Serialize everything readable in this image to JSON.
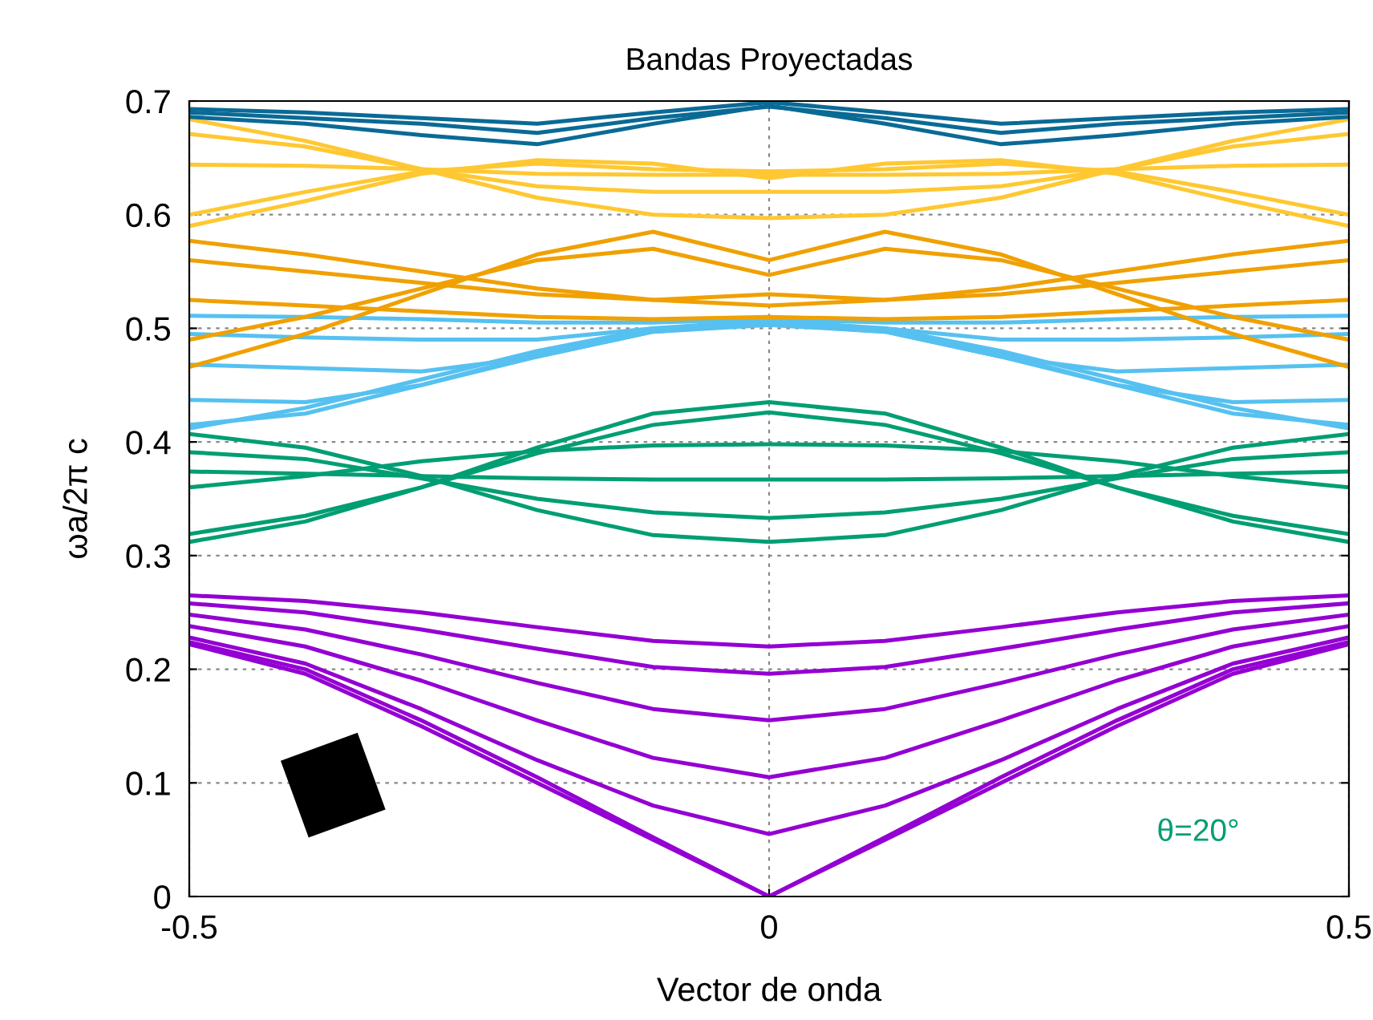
{
  "chart_data": {
    "type": "line",
    "title": "Bandas Proyectadas",
    "xlabel": "Vector de onda",
    "ylabel": "ωa/2π c",
    "annotations": [
      "θ=20°"
    ],
    "x": [
      -0.5,
      -0.4,
      -0.3,
      -0.2,
      -0.1,
      0,
      0.1,
      0.2,
      0.3,
      0.4,
      0.5
    ],
    "xlim": [
      -0.5,
      0.5
    ],
    "xticks": [
      -0.5,
      0,
      0.5
    ],
    "ylim": [
      0,
      0.7
    ],
    "yticks": [
      0,
      0.1,
      0.2,
      0.3,
      0.4,
      0.5,
      0.6,
      0.7
    ],
    "grid": true,
    "legend": false,
    "marker": "none",
    "line_style": "solid",
    "series": [
      {
        "color": "#9400d3",
        "values": [
          0.265,
          0.26,
          0.25,
          0.237,
          0.225,
          0.22,
          0.225,
          0.237,
          0.25,
          0.26,
          0.265
        ]
      },
      {
        "color": "#9400d3",
        "values": [
          0.258,
          0.25,
          0.235,
          0.218,
          0.202,
          0.196,
          0.202,
          0.218,
          0.235,
          0.25,
          0.258
        ]
      },
      {
        "color": "#9400d3",
        "values": [
          0.248,
          0.235,
          0.213,
          0.188,
          0.165,
          0.155,
          0.165,
          0.188,
          0.213,
          0.235,
          0.248
        ]
      },
      {
        "color": "#9400d3",
        "values": [
          0.238,
          0.22,
          0.19,
          0.155,
          0.122,
          0.105,
          0.122,
          0.155,
          0.19,
          0.22,
          0.238
        ]
      },
      {
        "color": "#9400d3",
        "values": [
          0.228,
          0.205,
          0.165,
          0.12,
          0.08,
          0.055,
          0.08,
          0.12,
          0.165,
          0.205,
          0.228
        ]
      },
      {
        "color": "#9400d3",
        "values": [
          0.224,
          0.2,
          0.155,
          0.105,
          0.052,
          0.0,
          0.052,
          0.105,
          0.155,
          0.2,
          0.224
        ]
      },
      {
        "color": "#9400d3",
        "values": [
          0.222,
          0.196,
          0.15,
          0.1,
          0.05,
          0.0,
          0.05,
          0.1,
          0.15,
          0.196,
          0.222
        ]
      },
      {
        "color": "#009e73",
        "values": [
          0.312,
          0.33,
          0.36,
          0.395,
          0.425,
          0.435,
          0.425,
          0.395,
          0.36,
          0.33,
          0.312
        ]
      },
      {
        "color": "#009e73",
        "values": [
          0.319,
          0.335,
          0.36,
          0.39,
          0.415,
          0.426,
          0.415,
          0.39,
          0.36,
          0.335,
          0.319
        ]
      },
      {
        "color": "#009e73",
        "values": [
          0.36,
          0.37,
          0.383,
          0.392,
          0.397,
          0.398,
          0.397,
          0.392,
          0.383,
          0.37,
          0.36
        ]
      },
      {
        "color": "#009e73",
        "values": [
          0.374,
          0.372,
          0.37,
          0.368,
          0.367,
          0.367,
          0.367,
          0.368,
          0.37,
          0.372,
          0.374
        ]
      },
      {
        "color": "#009e73",
        "values": [
          0.391,
          0.385,
          0.368,
          0.35,
          0.338,
          0.333,
          0.338,
          0.35,
          0.368,
          0.385,
          0.391
        ]
      },
      {
        "color": "#009e73",
        "values": [
          0.407,
          0.395,
          0.37,
          0.34,
          0.318,
          0.312,
          0.318,
          0.34,
          0.37,
          0.395,
          0.407
        ]
      },
      {
        "color": "#56c1f0",
        "values": [
          0.412,
          0.43,
          0.455,
          0.48,
          0.5,
          0.507,
          0.5,
          0.48,
          0.455,
          0.43,
          0.412
        ]
      },
      {
        "color": "#56c1f0",
        "values": [
          0.415,
          0.425,
          0.45,
          0.475,
          0.497,
          0.503,
          0.497,
          0.475,
          0.45,
          0.425,
          0.415
        ]
      },
      {
        "color": "#56c1f0",
        "values": [
          0.437,
          0.435,
          0.45,
          0.477,
          0.498,
          0.505,
          0.498,
          0.477,
          0.45,
          0.435,
          0.437
        ]
      },
      {
        "color": "#56c1f0",
        "values": [
          0.468,
          0.465,
          0.462,
          0.475,
          0.497,
          0.504,
          0.497,
          0.475,
          0.462,
          0.465,
          0.468
        ]
      },
      {
        "color": "#56c1f0",
        "values": [
          0.495,
          0.492,
          0.49,
          0.49,
          0.5,
          0.505,
          0.5,
          0.49,
          0.49,
          0.492,
          0.495
        ]
      },
      {
        "color": "#56c1f0",
        "values": [
          0.511,
          0.51,
          0.508,
          0.505,
          0.505,
          0.508,
          0.505,
          0.505,
          0.508,
          0.51,
          0.511
        ]
      },
      {
        "color": "#f0a000",
        "values": [
          0.466,
          0.495,
          0.53,
          0.565,
          0.585,
          0.56,
          0.585,
          0.565,
          0.53,
          0.495,
          0.466
        ]
      },
      {
        "color": "#f0a000",
        "values": [
          0.49,
          0.51,
          0.535,
          0.56,
          0.57,
          0.547,
          0.57,
          0.56,
          0.535,
          0.51,
          0.49
        ]
      },
      {
        "color": "#f0a000",
        "values": [
          0.577,
          0.565,
          0.55,
          0.535,
          0.525,
          0.52,
          0.525,
          0.535,
          0.55,
          0.565,
          0.577
        ]
      },
      {
        "color": "#f0a000",
        "values": [
          0.56,
          0.55,
          0.54,
          0.53,
          0.525,
          0.53,
          0.525,
          0.53,
          0.54,
          0.55,
          0.56
        ]
      },
      {
        "color": "#f0a000",
        "values": [
          0.525,
          0.52,
          0.515,
          0.51,
          0.508,
          0.51,
          0.508,
          0.51,
          0.515,
          0.52,
          0.525
        ]
      },
      {
        "color": "#ffc832",
        "values": [
          0.684,
          0.665,
          0.64,
          0.615,
          0.6,
          0.597,
          0.6,
          0.615,
          0.64,
          0.665,
          0.684
        ]
      },
      {
        "color": "#ffc832",
        "values": [
          0.6,
          0.62,
          0.638,
          0.645,
          0.64,
          0.638,
          0.64,
          0.645,
          0.638,
          0.62,
          0.6
        ]
      },
      {
        "color": "#ffc832",
        "values": [
          0.59,
          0.612,
          0.636,
          0.648,
          0.645,
          0.632,
          0.645,
          0.648,
          0.636,
          0.612,
          0.59
        ]
      },
      {
        "color": "#ffc832",
        "values": [
          0.644,
          0.643,
          0.64,
          0.636,
          0.635,
          0.635,
          0.635,
          0.636,
          0.64,
          0.643,
          0.644
        ]
      },
      {
        "color": "#ffc832",
        "values": [
          0.671,
          0.66,
          0.64,
          0.625,
          0.62,
          0.62,
          0.62,
          0.625,
          0.64,
          0.66,
          0.671
        ]
      },
      {
        "color": "#0a6a96",
        "values": [
          0.686,
          0.68,
          0.67,
          0.662,
          0.68,
          0.696,
          0.68,
          0.662,
          0.67,
          0.68,
          0.686
        ]
      },
      {
        "color": "#0a6a96",
        "values": [
          0.69,
          0.685,
          0.68,
          0.672,
          0.685,
          0.695,
          0.685,
          0.672,
          0.68,
          0.685,
          0.69
        ]
      },
      {
        "color": "#0a6a96",
        "values": [
          0.693,
          0.69,
          0.685,
          0.68,
          0.69,
          0.699,
          0.69,
          0.68,
          0.685,
          0.69,
          0.693
        ]
      }
    ]
  }
}
